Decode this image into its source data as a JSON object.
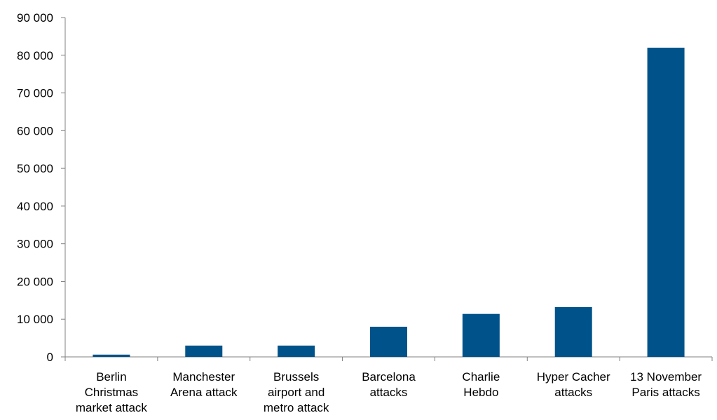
{
  "chart_data": {
    "type": "bar",
    "title": "",
    "xlabel": "",
    "ylabel": "",
    "categories": [
      [
        "Berlin",
        "Christmas",
        "market attack"
      ],
      [
        "Manchester",
        "Arena attack"
      ],
      [
        "Brussels",
        "airport and",
        "metro attack"
      ],
      [
        "Barcelona",
        "attacks"
      ],
      [
        "Charlie",
        "Hebdo"
      ],
      [
        "Hyper Cacher",
        "attacks"
      ],
      [
        "13 November",
        "Paris attacks"
      ]
    ],
    "values": [
      600,
      3000,
      3000,
      8000,
      11400,
      13200,
      82000
    ],
    "ylim": [
      0,
      90000
    ],
    "yticks": [
      0,
      10000,
      20000,
      30000,
      40000,
      50000,
      60000,
      70000,
      80000,
      90000
    ],
    "ytick_labels": [
      "0",
      "10 000",
      "20 000",
      "30 000",
      "40 000",
      "50 000",
      "60 000",
      "70 000",
      "80 000",
      "90 000"
    ],
    "bar_color": "#00538A",
    "axis_color": "#808080",
    "grid": false,
    "legend": "none"
  }
}
